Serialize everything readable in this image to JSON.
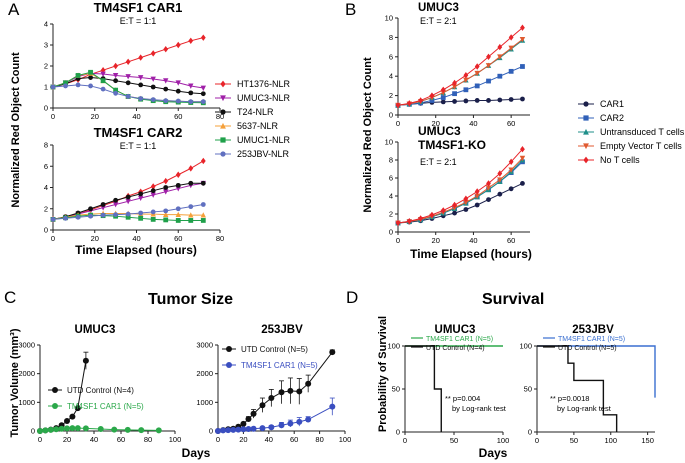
{
  "panels": {
    "A": {
      "letter": "A",
      "ylabel": "Normalized Red Object Count",
      "xlabel": "Time Elapsed (hours)",
      "legend": [
        "HT1376-NLR",
        "UMUC3-NLR",
        "T24-NLR",
        "5637-NLR",
        "UMUC1-NLR",
        "253JBV-NLR"
      ]
    },
    "B": {
      "letter": "B",
      "ylabel": "Normalized Red Object Count",
      "xlabel": "Time Elapsed (hours)",
      "legend": [
        "CAR1",
        "CAR2",
        "Untransduced T cells",
        "Empty Vector T cells",
        "No T cells"
      ]
    },
    "C": {
      "letter": "C",
      "heading": "Tumor Size",
      "ylabel": "Tumor Volume (mm³)",
      "xlabel": "Days"
    },
    "D": {
      "letter": "D",
      "heading": "Survival",
      "ylabel": "Probability of Survival",
      "xlabel": "Days"
    }
  },
  "chart_data": [
    {
      "id": "A1",
      "type": "line",
      "title": "TM4SF1 CAR1",
      "subtitle": "E:T = 1:1",
      "xlim": [
        0,
        80
      ],
      "ylim": [
        0,
        4
      ],
      "xticks": [
        0,
        20,
        40,
        60,
        80
      ],
      "yticks": [
        0,
        1,
        2,
        3,
        4
      ],
      "x": [
        0,
        6,
        12,
        18,
        24,
        30,
        36,
        42,
        48,
        54,
        60,
        66,
        72
      ],
      "series": [
        {
          "name": "HT1376-NLR",
          "color": "#e8242a",
          "marker": "diamond",
          "values": [
            1.0,
            1.15,
            1.35,
            1.6,
            1.8,
            2.0,
            2.2,
            2.4,
            2.6,
            2.8,
            3.0,
            3.2,
            3.35
          ]
        },
        {
          "name": "UMUC3-NLR",
          "color": "#a020a8",
          "marker": "tri-down",
          "values": [
            1.0,
            1.2,
            1.5,
            1.65,
            1.62,
            1.55,
            1.5,
            1.45,
            1.38,
            1.3,
            1.2,
            1.05,
            0.95
          ]
        },
        {
          "name": "T24-NLR",
          "color": "#111111",
          "marker": "circle",
          "values": [
            1.0,
            1.15,
            1.4,
            1.45,
            1.4,
            1.3,
            1.2,
            1.1,
            1.0,
            0.9,
            0.8,
            0.72,
            0.68
          ]
        },
        {
          "name": "5637-NLR",
          "color": "#f5a03a",
          "marker": "tri-up",
          "values": [
            1.0,
            1.2,
            1.55,
            1.65,
            1.3,
            0.85,
            0.55,
            0.45,
            0.38,
            0.35,
            0.32,
            0.3,
            0.3
          ]
        },
        {
          "name": "UMUC1-NLR",
          "color": "#1fa04a",
          "marker": "square",
          "values": [
            1.0,
            1.2,
            1.55,
            1.7,
            1.3,
            0.85,
            0.55,
            0.42,
            0.35,
            0.3,
            0.28,
            0.26,
            0.25
          ]
        },
        {
          "name": "253JBV-NLR",
          "color": "#6070c0",
          "marker": "circle",
          "values": [
            1.0,
            1.05,
            1.1,
            1.05,
            0.9,
            0.7,
            0.55,
            0.45,
            0.4,
            0.35,
            0.33,
            0.3,
            0.3
          ]
        }
      ]
    },
    {
      "id": "A2",
      "type": "line",
      "title": "TM4SF1 CAR2",
      "subtitle": "E:T = 1:1",
      "xlim": [
        0,
        80
      ],
      "ylim": [
        0,
        8
      ],
      "xticks": [
        0,
        20,
        40,
        60,
        80
      ],
      "yticks": [
        0,
        2,
        4,
        6,
        8
      ],
      "x": [
        0,
        6,
        12,
        18,
        24,
        30,
        36,
        42,
        48,
        54,
        60,
        66,
        72
      ],
      "series": [
        {
          "name": "HT1376-NLR",
          "color": "#e8242a",
          "marker": "diamond",
          "values": [
            1.0,
            1.2,
            1.5,
            1.9,
            2.3,
            2.7,
            3.2,
            3.6,
            4.1,
            4.6,
            5.2,
            5.8,
            6.5
          ]
        },
        {
          "name": "UMUC3-NLR",
          "color": "#a020a8",
          "marker": "tri-down",
          "values": [
            1.0,
            1.2,
            1.5,
            1.8,
            2.1,
            2.4,
            2.7,
            3.0,
            3.3,
            3.6,
            3.9,
            4.2,
            4.4
          ]
        },
        {
          "name": "T24-NLR",
          "color": "#111111",
          "marker": "circle",
          "values": [
            1.0,
            1.25,
            1.6,
            2.0,
            2.4,
            2.8,
            3.1,
            3.4,
            3.7,
            4.0,
            4.2,
            4.4,
            4.4
          ]
        },
        {
          "name": "5637-NLR",
          "color": "#f5a03a",
          "marker": "tri-up",
          "values": [
            1.0,
            1.2,
            1.4,
            1.5,
            1.55,
            1.55,
            1.55,
            1.5,
            1.5,
            1.45,
            1.45,
            1.4,
            1.4
          ]
        },
        {
          "name": "UMUC1-NLR",
          "color": "#1fa04a",
          "marker": "square",
          "values": [
            1.0,
            1.15,
            1.3,
            1.4,
            1.35,
            1.3,
            1.2,
            1.1,
            1.0,
            0.95,
            0.9,
            0.9,
            0.9
          ]
        },
        {
          "name": "253JBV-NLR",
          "color": "#6070c0",
          "marker": "circle",
          "values": [
            1.0,
            1.1,
            1.2,
            1.3,
            1.4,
            1.45,
            1.5,
            1.6,
            1.7,
            1.8,
            2.0,
            2.2,
            2.4
          ]
        }
      ]
    },
    {
      "id": "B1",
      "type": "line",
      "title": "UMUC3",
      "subtitle": "E:T = 2:1",
      "xlim": [
        0,
        70
      ],
      "ylim": [
        0,
        10
      ],
      "xticks": [
        0,
        20,
        40,
        60
      ],
      "yticks": [
        0,
        2,
        4,
        6,
        8,
        10
      ],
      "x": [
        0,
        6,
        12,
        18,
        24,
        30,
        36,
        42,
        48,
        54,
        60,
        66
      ],
      "series": [
        {
          "name": "CAR1",
          "color": "#1a1f4a",
          "marker": "circle",
          "values": [
            1.0,
            1.1,
            1.2,
            1.3,
            1.35,
            1.4,
            1.45,
            1.5,
            1.5,
            1.55,
            1.6,
            1.65
          ]
        },
        {
          "name": "CAR2",
          "color": "#3060b8",
          "marker": "square",
          "values": [
            1.0,
            1.1,
            1.25,
            1.5,
            1.8,
            2.2,
            2.6,
            3.0,
            3.5,
            4.0,
            4.5,
            5.0
          ]
        },
        {
          "name": "Untransduced T cells",
          "color": "#1f8f8a",
          "marker": "tri-up",
          "values": [
            1.0,
            1.15,
            1.4,
            1.8,
            2.3,
            2.9,
            3.6,
            4.3,
            5.1,
            5.9,
            6.8,
            7.7
          ]
        },
        {
          "name": "Empty Vector T cells",
          "color": "#e05a30",
          "marker": "tri-down",
          "values": [
            1.0,
            1.15,
            1.4,
            1.8,
            2.3,
            2.9,
            3.6,
            4.3,
            5.1,
            6.0,
            6.9,
            7.8
          ]
        },
        {
          "name": "No T cells",
          "color": "#e8242a",
          "marker": "diamond",
          "values": [
            1.0,
            1.2,
            1.5,
            2.0,
            2.6,
            3.3,
            4.1,
            5.0,
            6.0,
            7.0,
            8.0,
            9.0
          ]
        }
      ]
    },
    {
      "id": "B2",
      "type": "line",
      "title": "UMUC3 TM4SF1-KO",
      "subtitle": "E:T = 2:1",
      "xlim": [
        0,
        70
      ],
      "ylim": [
        0,
        10
      ],
      "xticks": [
        0,
        20,
        40,
        60
      ],
      "yticks": [
        0,
        2,
        4,
        6,
        8,
        10
      ],
      "x": [
        0,
        6,
        12,
        18,
        24,
        30,
        36,
        42,
        48,
        54,
        60,
        66
      ],
      "series": [
        {
          "name": "CAR1",
          "color": "#1a1f4a",
          "marker": "circle",
          "values": [
            1.0,
            1.1,
            1.25,
            1.5,
            1.8,
            2.1,
            2.5,
            3.0,
            3.6,
            4.2,
            4.8,
            5.4
          ]
        },
        {
          "name": "CAR2",
          "color": "#3060b8",
          "marker": "square",
          "values": [
            1.0,
            1.15,
            1.35,
            1.7,
            2.1,
            2.6,
            3.2,
            3.9,
            4.7,
            5.6,
            6.6,
            7.8
          ]
        },
        {
          "name": "Untransduced T cells",
          "color": "#1f8f8a",
          "marker": "tri-up",
          "values": [
            1.0,
            1.15,
            1.35,
            1.7,
            2.1,
            2.6,
            3.2,
            3.9,
            4.7,
            5.6,
            6.7,
            8.0
          ]
        },
        {
          "name": "Empty Vector T cells",
          "color": "#e05a30",
          "marker": "tri-down",
          "values": [
            1.0,
            1.15,
            1.4,
            1.75,
            2.2,
            2.7,
            3.3,
            4.0,
            4.9,
            5.8,
            6.9,
            8.2
          ]
        },
        {
          "name": "No T cells",
          "color": "#e8242a",
          "marker": "diamond",
          "values": [
            1.0,
            1.2,
            1.5,
            1.9,
            2.4,
            3.0,
            3.7,
            4.5,
            5.4,
            6.5,
            7.8,
            9.2
          ]
        }
      ]
    },
    {
      "id": "C1",
      "type": "line",
      "title": "UMUC3",
      "xlim": [
        0,
        100
      ],
      "ylim": [
        0,
        3000
      ],
      "xticks": [
        0,
        20,
        40,
        60,
        80,
        100
      ],
      "yticks": [
        0,
        1000,
        2000,
        3000
      ],
      "series": [
        {
          "name": "UTD Control (N=4)",
          "color": "#111111",
          "marker": "circle",
          "x": [
            0,
            4,
            8,
            12,
            16,
            20,
            24,
            28,
            34
          ],
          "values": [
            0,
            20,
            50,
            100,
            200,
            350,
            500,
            800,
            2450
          ],
          "err": [
            0,
            0,
            0,
            0,
            0,
            0,
            0,
            0,
            300
          ]
        },
        {
          "name": "TM4SF1 CAR1 (N=5)",
          "color": "#2ba84a",
          "marker": "circle",
          "x": [
            0,
            4,
            8,
            12,
            16,
            20,
            24,
            28,
            34,
            45,
            55,
            65,
            75,
            88
          ],
          "values": [
            0,
            20,
            40,
            60,
            80,
            90,
            100,
            100,
            90,
            70,
            50,
            40,
            30,
            20
          ]
        }
      ]
    },
    {
      "id": "C2",
      "type": "line",
      "title": "253JBV",
      "xlim": [
        0,
        100
      ],
      "ylim": [
        0,
        3000
      ],
      "xticks": [
        0,
        20,
        40,
        60,
        80,
        100
      ],
      "yticks": [
        0,
        1000,
        2000,
        3000
      ],
      "series": [
        {
          "name": "UTD Control (N=5)",
          "color": "#111111",
          "marker": "circle",
          "x": [
            0,
            4,
            8,
            12,
            16,
            20,
            24,
            28,
            35,
            42,
            50,
            57,
            64,
            71,
            90
          ],
          "values": [
            0,
            30,
            60,
            80,
            150,
            250,
            420,
            600,
            900,
            1150,
            1350,
            1400,
            1380,
            1650,
            2750
          ],
          "err": [
            0,
            0,
            0,
            0,
            0,
            0,
            80,
            150,
            250,
            300,
            400,
            450,
            450,
            300,
            80
          ]
        },
        {
          "name": "TM4SF1 CAR1 (N=5)",
          "color": "#3a4ec0",
          "marker": "circle",
          "x": [
            0,
            4,
            8,
            12,
            16,
            20,
            24,
            28,
            35,
            42,
            50,
            57,
            64,
            71,
            90
          ],
          "values": [
            0,
            20,
            30,
            40,
            50,
            60,
            70,
            80,
            100,
            130,
            200,
            260,
            320,
            400,
            850
          ],
          "err": [
            0,
            0,
            0,
            0,
            0,
            0,
            0,
            0,
            30,
            50,
            100,
            120,
            150,
            100,
            300
          ]
        }
      ]
    },
    {
      "id": "D1",
      "type": "line",
      "title": "UMUC3",
      "xlim": [
        0,
        100
      ],
      "ylim": [
        0,
        100
      ],
      "xticks": [
        0,
        50,
        100
      ],
      "yticks": [
        0,
        50,
        100
      ],
      "annotation": [
        "** p=0.004",
        "by Log-rank test"
      ],
      "series": [
        {
          "name": "TM4SF1 CAR1 (N=5)",
          "color": "#2ba84a",
          "steps": [
            [
              0,
              100
            ],
            [
              100,
              100
            ]
          ]
        },
        {
          "name": "UTD Control (N=4)",
          "color": "#111111",
          "steps": [
            [
              0,
              100
            ],
            [
              30,
              100
            ],
            [
              30,
              50
            ],
            [
              37,
              50
            ],
            [
              37,
              0
            ]
          ]
        }
      ]
    },
    {
      "id": "D2",
      "type": "line",
      "title": "253JBV",
      "xlim": [
        0,
        160
      ],
      "ylim": [
        0,
        100
      ],
      "xticks": [
        0,
        50,
        100,
        150
      ],
      "yticks": [
        0,
        50,
        100
      ],
      "annotation": [
        "** p=0.0018",
        "by Log-rank test"
      ],
      "series": [
        {
          "name": "TM4SF1 CAR1 (N=5)",
          "color": "#3a6fd0",
          "steps": [
            [
              0,
              100
            ],
            [
              160,
              100
            ],
            [
              160,
              40
            ]
          ]
        },
        {
          "name": "UTD Control (N=5)",
          "color": "#111111",
          "steps": [
            [
              0,
              100
            ],
            [
              42,
              100
            ],
            [
              42,
              80
            ],
            [
              50,
              80
            ],
            [
              50,
              60
            ],
            [
              90,
              60
            ],
            [
              90,
              20
            ],
            [
              108,
              20
            ],
            [
              108,
              0
            ]
          ]
        }
      ]
    }
  ]
}
